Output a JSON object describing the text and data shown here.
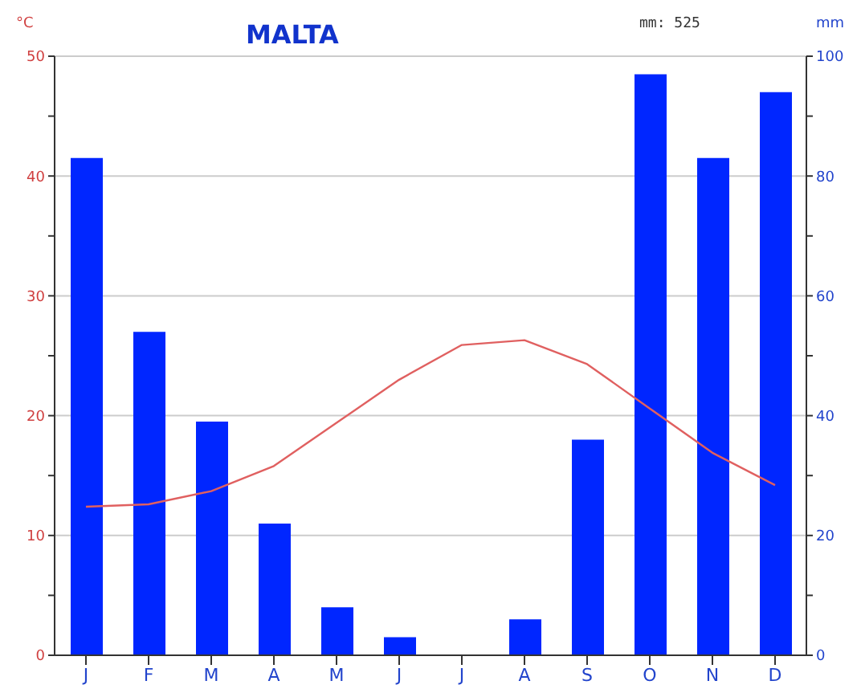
{
  "chart_data": {
    "type": "bar",
    "title": "MALTA",
    "ylabel": "°C",
    "y2label": "mm",
    "annotations": [
      "mm: 525"
    ],
    "categories": [
      "J",
      "F",
      "M",
      "A",
      "M",
      "J",
      "J",
      "A",
      "S",
      "O",
      "N",
      "D"
    ],
    "series": [
      {
        "axis": "y2",
        "color": "#0026ff",
        "values": [
          83,
          54,
          39,
          22,
          8,
          3,
          0,
          6,
          36,
          97,
          83,
          94
        ]
      },
      {
        "type": "line",
        "axis": "y",
        "color": "#e06060",
        "values": [
          12.4,
          12.6,
          13.7,
          15.8,
          19.4,
          23,
          25.9,
          26.3,
          24.3,
          20.6,
          16.9,
          14.2
        ]
      }
    ],
    "ylim": [
      0,
      50
    ],
    "yticks": [
      0,
      {
        "value": 5,
        "label": null
      },
      10,
      {
        "value": 15,
        "label": null
      },
      20,
      {
        "value": 25,
        "label": null
      },
      30,
      {
        "value": 35,
        "label": null
      },
      40,
      {
        "value": 45,
        "label": null
      },
      50
    ],
    "y2lim": [
      0,
      100
    ],
    "y2ticks": [
      0,
      {
        "value": 10,
        "label": null
      },
      20,
      {
        "value": 30,
        "label": null
      },
      40,
      {
        "value": 50,
        "label": null
      },
      60,
      {
        "value": 70,
        "label": null
      },
      80,
      {
        "value": 90,
        "label": null
      },
      100
    ],
    "grid": "y",
    "legend": false,
    "marker": "none",
    "line_style": "solid"
  }
}
